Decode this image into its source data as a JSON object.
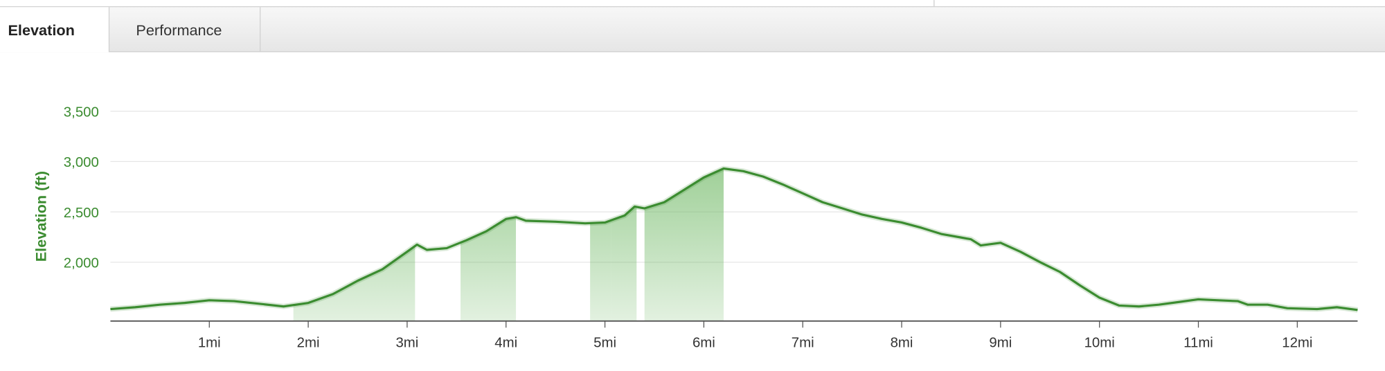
{
  "tabs": [
    "Elevation",
    "Performance"
  ],
  "chart_data": {
    "type": "area",
    "y_label": "Elevation (ft)",
    "color": "#3b8c30",
    "x": [
      0,
      0.25,
      0.5,
      0.75,
      1.0,
      1.25,
      1.5,
      1.75,
      2.0,
      2.25,
      2.5,
      2.75,
      3.0,
      3.1,
      3.2,
      3.4,
      3.6,
      3.8,
      4.0,
      4.1,
      4.2,
      4.5,
      4.8,
      5.0,
      5.2,
      5.3,
      5.4,
      5.6,
      5.8,
      6.0,
      6.2,
      6.4,
      6.6,
      6.8,
      7.0,
      7.2,
      7.4,
      7.6,
      7.8,
      8.0,
      8.2,
      8.4,
      8.6,
      8.7,
      8.8,
      9.0,
      9.2,
      9.4,
      9.6,
      9.8,
      10.0,
      10.2,
      10.4,
      10.6,
      10.8,
      11.0,
      11.2,
      11.4,
      11.5,
      11.7,
      11.9,
      12.2,
      12.4,
      12.61
    ],
    "values": [
      1535,
      1553,
      1579,
      1596,
      1623,
      1614,
      1588,
      1561,
      1596,
      1684,
      1816,
      1930,
      2105,
      2175,
      2123,
      2140,
      2219,
      2307,
      2430,
      2447,
      2412,
      2403,
      2386,
      2395,
      2465,
      2553,
      2535,
      2596,
      2719,
      2842,
      2930,
      2904,
      2851,
      2772,
      2684,
      2596,
      2535,
      2474,
      2430,
      2395,
      2342,
      2281,
      2246,
      2228,
      2167,
      2193,
      2105,
      2000,
      1904,
      1772,
      1649,
      1570,
      1561,
      1579,
      1605,
      1632,
      1623,
      1614,
      1579,
      1579,
      1544,
      1535,
      1553,
      1526
    ],
    "highlights": [
      [
        1.85,
        3.08
      ],
      [
        3.54,
        4.1
      ],
      [
        4.85,
        5.06
      ],
      [
        5.06,
        5.32
      ],
      [
        5.4,
        6.2
      ]
    ],
    "xlim": [
      0,
      12.61
    ],
    "ylim": [
      1421,
      3700
    ],
    "xticks": [
      {
        "value": 1,
        "label": "1mi"
      },
      {
        "value": 2,
        "label": "2mi"
      },
      {
        "value": 3,
        "label": "3mi"
      },
      {
        "value": 4,
        "label": "4mi"
      },
      {
        "value": 5,
        "label": "5mi"
      },
      {
        "value": 6,
        "label": "6mi"
      },
      {
        "value": 7,
        "label": "7mi"
      },
      {
        "value": 8,
        "label": "8mi"
      },
      {
        "value": 9,
        "label": "9mi"
      },
      {
        "value": 10,
        "label": "10mi"
      },
      {
        "value": 11,
        "label": "11mi"
      },
      {
        "value": 12,
        "label": "12mi"
      }
    ],
    "yticks": [
      {
        "value": 2000,
        "label": "2,000"
      },
      {
        "value": 2500,
        "label": "2,500"
      },
      {
        "value": 3000,
        "label": "3,000"
      },
      {
        "value": 3500,
        "label": "3,500"
      }
    ],
    "grid": true
  }
}
